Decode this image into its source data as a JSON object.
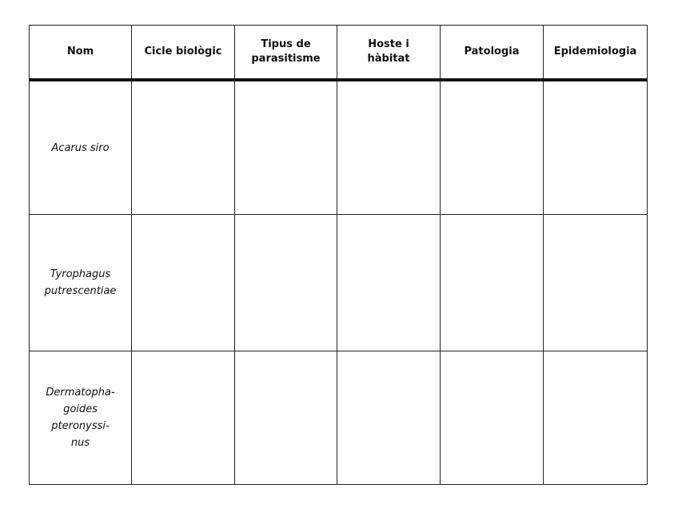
{
  "table": {
    "headers": [
      "Nom",
      "Cicle biològic",
      "Tipus de\nparasitisme",
      "Hoste i\nhàbitat",
      "Patologia",
      "Epidemiologia"
    ],
    "rows": [
      {
        "name": "Acarus siro",
        "cells": [
          "",
          "",
          "",
          "",
          ""
        ]
      },
      {
        "name": "Tyrophagus\nputrescentiae",
        "cells": [
          "",
          "",
          "",
          "",
          ""
        ]
      },
      {
        "name": "Dermatopha-\ngoides\npteronyssi-\nnus",
        "cells": [
          "",
          "",
          "",
          "",
          ""
        ]
      }
    ]
  }
}
